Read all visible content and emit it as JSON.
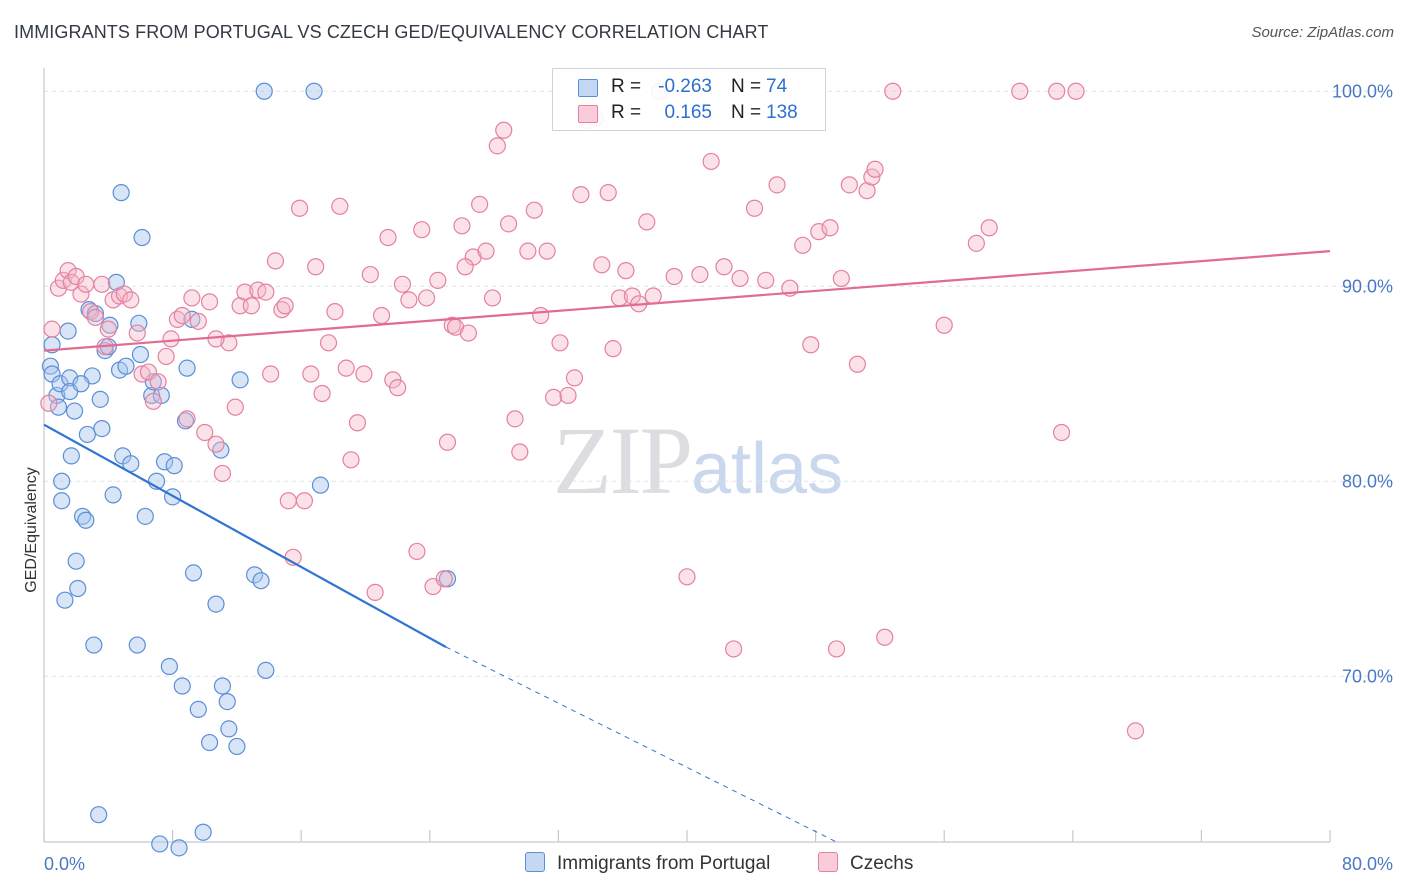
{
  "header": {
    "title": "IMMIGRANTS FROM PORTUGAL VS CZECH GED/EQUIVALENCY CORRELATION CHART",
    "source": "Source: ZipAtlas.com"
  },
  "watermark": {
    "zip": "ZIP",
    "atlas": "atlas"
  },
  "legend": {
    "rows": [
      {
        "r_label": "R =",
        "r_value": "-0.263",
        "n_label": "N =",
        "n_value": "74"
      },
      {
        "r_label": "R =",
        "r_value": "0.165",
        "n_label": "N =",
        "n_value": "138"
      }
    ]
  },
  "bottom_legend": {
    "series1": "Immigrants from Portugal",
    "series2": "Czechs"
  },
  "colors": {
    "blue_fill": "#a9c6ee",
    "blue_stroke": "#5b8fd6",
    "blue_line": "#2f74d0",
    "pink_fill": "#f4b6c8",
    "pink_stroke": "#e4819f",
    "pink_line": "#e26b93",
    "tick": "#4a79c4",
    "grid": "#dfe3e8"
  },
  "chart_data": {
    "type": "scatter",
    "title": "IMMIGRANTS FROM PORTUGAL VS CZECH GED/EQUIVALENCY CORRELATION CHART",
    "xlabel": "",
    "ylabel": "GED/Equivalency",
    "xlim": [
      0,
      80
    ],
    "ylim": [
      61.5,
      101.5
    ],
    "x_ticks": [
      "0.0%",
      "80.0%"
    ],
    "y_ticks": [
      {
        "value": 100,
        "label": "100.0%"
      },
      {
        "value": 90,
        "label": "90.0%"
      },
      {
        "value": 80,
        "label": "80.0%"
      },
      {
        "value": 70,
        "label": "70.0%"
      }
    ],
    "grid": "horizontal dashed",
    "legend": "top-center",
    "series": [
      {
        "name": "Immigrants from Portugal",
        "R": -0.263,
        "N": 74,
        "trend": {
          "x0": 0,
          "y0": 82.9,
          "x1": 25,
          "y1": 71.5,
          "dashed_to_x": 49.3,
          "dashed_to_y": 61.5
        },
        "points": [
          [
            0.4,
            85.9
          ],
          [
            0.5,
            85.5
          ],
          [
            0.5,
            87.0
          ],
          [
            0.8,
            84.4
          ],
          [
            0.9,
            83.8
          ],
          [
            1.0,
            85.0
          ],
          [
            1.1,
            80.0
          ],
          [
            1.1,
            79.0
          ],
          [
            1.3,
            73.9
          ],
          [
            1.5,
            87.7
          ],
          [
            1.6,
            85.3
          ],
          [
            1.7,
            81.3
          ],
          [
            1.9,
            83.6
          ],
          [
            2.0,
            75.9
          ],
          [
            2.1,
            74.5
          ],
          [
            2.4,
            78.2
          ],
          [
            2.6,
            78.0
          ],
          [
            2.7,
            82.4
          ],
          [
            2.8,
            88.8
          ],
          [
            3.0,
            85.4
          ],
          [
            3.1,
            71.6
          ],
          [
            3.2,
            88.6
          ],
          [
            3.5,
            84.2
          ],
          [
            3.6,
            82.7
          ],
          [
            3.8,
            86.7
          ],
          [
            4.1,
            88.0
          ],
          [
            4.3,
            79.3
          ],
          [
            4.5,
            90.2
          ],
          [
            4.7,
            85.7
          ],
          [
            4.8,
            94.8
          ],
          [
            4.9,
            81.3
          ],
          [
            5.1,
            85.9
          ],
          [
            5.4,
            80.9
          ],
          [
            5.8,
            71.6
          ],
          [
            5.9,
            88.1
          ],
          [
            6.1,
            92.5
          ],
          [
            6.3,
            78.2
          ],
          [
            6.7,
            84.4
          ],
          [
            6.8,
            85.1
          ],
          [
            7.0,
            80.0
          ],
          [
            7.2,
            61.4
          ],
          [
            7.5,
            81.0
          ],
          [
            7.8,
            70.5
          ],
          [
            8.0,
            79.2
          ],
          [
            8.1,
            80.8
          ],
          [
            8.4,
            61.2
          ],
          [
            8.6,
            69.5
          ],
          [
            8.8,
            83.1
          ],
          [
            8.9,
            85.8
          ],
          [
            9.2,
            88.3
          ],
          [
            9.3,
            75.3
          ],
          [
            9.6,
            68.3
          ],
          [
            9.9,
            62.0
          ],
          [
            10.3,
            66.6
          ],
          [
            10.7,
            73.7
          ],
          [
            11.0,
            81.6
          ],
          [
            11.1,
            69.5
          ],
          [
            11.4,
            68.7
          ],
          [
            11.5,
            67.3
          ],
          [
            12.0,
            66.4
          ],
          [
            13.1,
            75.2
          ],
          [
            13.5,
            74.9
          ],
          [
            13.8,
            70.3
          ],
          [
            16.8,
            100.0
          ],
          [
            17.2,
            79.8
          ],
          [
            25.1,
            75.0
          ],
          [
            13.7,
            100.0
          ],
          [
            3.4,
            62.9
          ],
          [
            1.6,
            84.6
          ],
          [
            2.3,
            85.0
          ],
          [
            4.0,
            86.9
          ],
          [
            6.0,
            86.5
          ],
          [
            7.3,
            84.4
          ],
          [
            12.2,
            85.2
          ]
        ]
      },
      {
        "name": "Czechs",
        "R": 0.165,
        "N": 138,
        "trend": {
          "x0": 0,
          "y0": 86.7,
          "x1": 80,
          "y1": 91.8
        },
        "points": [
          [
            0.3,
            84.0
          ],
          [
            0.5,
            87.8
          ],
          [
            0.9,
            89.9
          ],
          [
            1.2,
            90.3
          ],
          [
            1.5,
            90.8
          ],
          [
            1.7,
            90.2
          ],
          [
            2.0,
            90.5
          ],
          [
            2.3,
            89.6
          ],
          [
            2.6,
            90.1
          ],
          [
            2.9,
            88.7
          ],
          [
            3.2,
            88.4
          ],
          [
            3.6,
            90.1
          ],
          [
            3.8,
            86.9
          ],
          [
            4.0,
            87.8
          ],
          [
            4.3,
            89.3
          ],
          [
            4.7,
            89.5
          ],
          [
            5.0,
            89.6
          ],
          [
            5.4,
            89.3
          ],
          [
            5.8,
            87.6
          ],
          [
            6.1,
            85.5
          ],
          [
            6.5,
            85.6
          ],
          [
            6.8,
            84.1
          ],
          [
            7.1,
            85.1
          ],
          [
            7.6,
            86.4
          ],
          [
            7.9,
            87.3
          ],
          [
            8.3,
            88.3
          ],
          [
            8.6,
            88.5
          ],
          [
            8.9,
            83.2
          ],
          [
            9.2,
            89.4
          ],
          [
            9.6,
            88.2
          ],
          [
            10.0,
            82.5
          ],
          [
            10.3,
            89.2
          ],
          [
            10.7,
            81.9
          ],
          [
            11.1,
            80.4
          ],
          [
            11.5,
            87.1
          ],
          [
            11.9,
            83.8
          ],
          [
            12.2,
            89.0
          ],
          [
            12.5,
            89.7
          ],
          [
            12.9,
            89.0
          ],
          [
            13.3,
            89.8
          ],
          [
            13.8,
            89.7
          ],
          [
            14.1,
            85.5
          ],
          [
            14.4,
            91.3
          ],
          [
            14.8,
            88.8
          ],
          [
            15.2,
            79.0
          ],
          [
            15.5,
            76.1
          ],
          [
            15.9,
            94.0
          ],
          [
            16.2,
            79.0
          ],
          [
            16.6,
            85.5
          ],
          [
            16.9,
            91.0
          ],
          [
            17.3,
            84.5
          ],
          [
            17.7,
            87.1
          ],
          [
            18.1,
            88.7
          ],
          [
            18.4,
            94.1
          ],
          [
            18.8,
            85.8
          ],
          [
            19.1,
            81.1
          ],
          [
            19.5,
            83.0
          ],
          [
            19.9,
            85.5
          ],
          [
            20.3,
            90.6
          ],
          [
            20.6,
            74.3
          ],
          [
            21.0,
            88.5
          ],
          [
            21.4,
            92.5
          ],
          [
            21.7,
            85.2
          ],
          [
            22.0,
            84.8
          ],
          [
            22.3,
            90.1
          ],
          [
            22.7,
            89.3
          ],
          [
            23.2,
            76.4
          ],
          [
            23.5,
            92.9
          ],
          [
            23.8,
            89.4
          ],
          [
            24.2,
            74.6
          ],
          [
            24.5,
            90.3
          ],
          [
            24.9,
            75.0
          ],
          [
            25.1,
            82.0
          ],
          [
            25.4,
            88.0
          ],
          [
            25.6,
            87.9
          ],
          [
            26.0,
            93.1
          ],
          [
            26.4,
            87.6
          ],
          [
            26.7,
            91.5
          ],
          [
            27.1,
            94.2
          ],
          [
            27.5,
            91.8
          ],
          [
            27.9,
            89.4
          ],
          [
            28.2,
            97.2
          ],
          [
            28.6,
            98.0
          ],
          [
            28.9,
            93.2
          ],
          [
            29.3,
            83.2
          ],
          [
            29.6,
            81.5
          ],
          [
            30.1,
            91.8
          ],
          [
            30.5,
            93.9
          ],
          [
            30.9,
            88.5
          ],
          [
            31.3,
            91.8
          ],
          [
            31.7,
            84.3
          ],
          [
            32.1,
            87.1
          ],
          [
            32.6,
            84.4
          ],
          [
            33.0,
            85.3
          ],
          [
            33.4,
            94.7
          ],
          [
            33.8,
            98.5
          ],
          [
            34.3,
            98.6
          ],
          [
            34.7,
            91.1
          ],
          [
            35.1,
            94.8
          ],
          [
            35.4,
            86.8
          ],
          [
            35.8,
            89.4
          ],
          [
            36.2,
            90.8
          ],
          [
            36.6,
            89.5
          ],
          [
            37.0,
            89.1
          ],
          [
            37.5,
            93.3
          ],
          [
            37.9,
            89.5
          ],
          [
            38.3,
            100.0
          ],
          [
            39.2,
            90.5
          ],
          [
            40.0,
            75.1
          ],
          [
            40.8,
            90.6
          ],
          [
            41.5,
            96.4
          ],
          [
            42.3,
            91.0
          ],
          [
            42.9,
            71.4
          ],
          [
            43.3,
            90.4
          ],
          [
            44.2,
            94.0
          ],
          [
            44.9,
            90.3
          ],
          [
            45.6,
            95.2
          ],
          [
            46.4,
            89.9
          ],
          [
            47.2,
            92.1
          ],
          [
            47.7,
            87.0
          ],
          [
            48.2,
            92.8
          ],
          [
            48.9,
            93.0
          ],
          [
            49.3,
            71.4
          ],
          [
            49.6,
            90.4
          ],
          [
            50.1,
            95.2
          ],
          [
            50.6,
            86.0
          ],
          [
            51.2,
            94.9
          ],
          [
            51.5,
            95.6
          ],
          [
            51.7,
            96.0
          ],
          [
            52.3,
            72.0
          ],
          [
            52.8,
            100.0
          ],
          [
            56.0,
            88.0
          ],
          [
            58.0,
            92.2
          ],
          [
            58.8,
            93.0
          ],
          [
            60.7,
            100.0
          ],
          [
            63.0,
            100.0
          ],
          [
            63.3,
            82.5
          ],
          [
            64.2,
            100.0
          ],
          [
            67.9,
            67.2
          ],
          [
            10.7,
            87.3
          ],
          [
            15.0,
            89.0
          ],
          [
            26.2,
            91.0
          ]
        ]
      }
    ]
  }
}
